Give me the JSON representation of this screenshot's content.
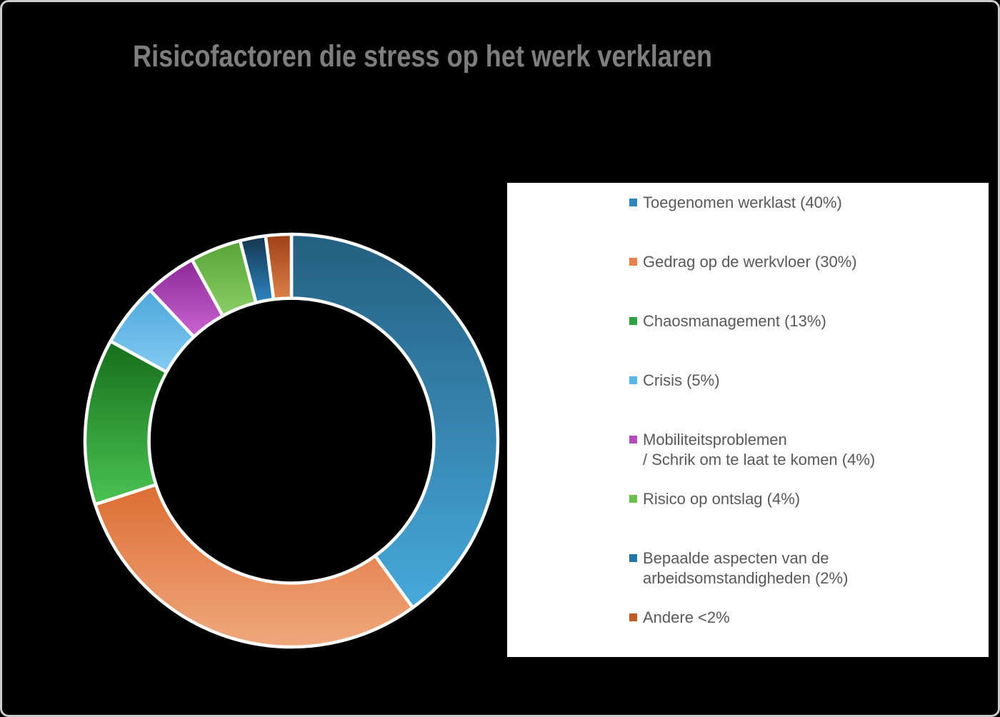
{
  "chart_data": {
    "type": "pie",
    "subtype": "donut",
    "title": "Risicofactoren die stress op het werk verklaren",
    "legend_position": "right",
    "direction": "clockwise",
    "start_angle_deg": 0,
    "inner_radius_ratio": 0.69,
    "categories": [
      "Toegenomen werklast",
      "Gedrag op de werkvloer",
      "Chaosmanagement",
      "Crisis",
      "Mobiliteitsproblemen / Schrik om te laat te komen",
      "Risico op ontslag",
      "Bepaalde aspecten van de arbeidsomstandigheden",
      "Andere"
    ],
    "values": [
      40,
      30,
      13,
      5,
      4,
      4,
      2,
      2
    ],
    "value_display": [
      "40%",
      "30%",
      "13%",
      "5%",
      "4%",
      "4%",
      "2%",
      "<2%"
    ],
    "legend_labels": [
      [
        "Toegenomen werklast (40%)"
      ],
      [
        "Gedrag op de werkvloer (30%)"
      ],
      [
        "Chaosmanagement (13%)"
      ],
      [
        "Crisis (5%)"
      ],
      [
        "Mobiliteitsproblemen",
        "/ Schrik om te laat te komen (4%)"
      ],
      [
        "Risico op ontslag (4%)"
      ],
      [
        "Bepaalde aspecten van de",
        "arbeidsomstandigheden (2%)"
      ],
      [
        "Andere <2%"
      ]
    ],
    "colors": {
      "background": "#000000",
      "frame_border": "#cdcdcd",
      "title_color": "#7e7e7e",
      "legend_background": "#ffffff",
      "legend_text_color": "#595959",
      "slice_stroke": "#ffffff",
      "slice_gradients": [
        {
          "top": "#245f80",
          "bottom": "#47a9dc"
        },
        {
          "top": "#dc6d33",
          "bottom": "#f0a87d"
        },
        {
          "top": "#156f1b",
          "bottom": "#4bc253"
        },
        {
          "top": "#4ea6da",
          "bottom": "#82ccf2"
        },
        {
          "top": "#8c2894",
          "bottom": "#cc63d4"
        },
        {
          "top": "#57a437",
          "bottom": "#8acf67"
        },
        {
          "top": "#14344c",
          "bottom": "#2f85c3"
        },
        {
          "top": "#9c4016",
          "bottom": "#dd8049"
        }
      ],
      "legend_markers": [
        "#2e86c1",
        "#e8804c",
        "#2ca33e",
        "#56b7e8",
        "#b44cbe",
        "#6cbe4b",
        "#2277a8",
        "#c25a28"
      ]
    }
  }
}
